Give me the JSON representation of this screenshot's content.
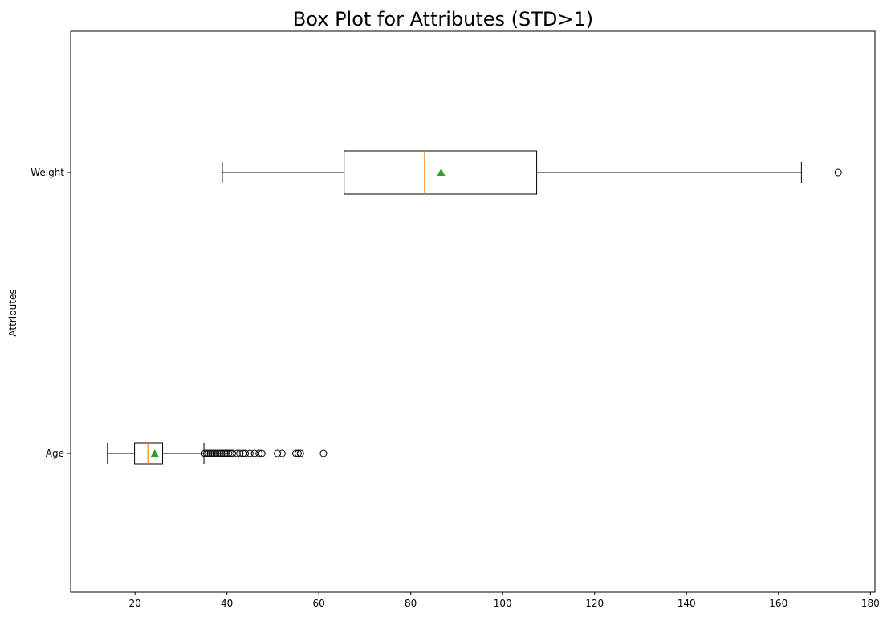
{
  "chart_data": {
    "type": "boxplot",
    "orientation": "horizontal",
    "title": "Box Plot for Attributes (STD>1)",
    "xlabel": "",
    "ylabel": "Attributes",
    "xlim": [
      6,
      181
    ],
    "x_ticks": [
      20,
      40,
      60,
      80,
      100,
      120,
      140,
      160,
      180
    ],
    "categories": [
      "Age",
      "Weight"
    ],
    "series": [
      {
        "name": "Age",
        "whisker_low": 14,
        "q1": 19.9,
        "median": 22.8,
        "q3": 26.0,
        "whisker_high": 35,
        "mean": 24.3,
        "outliers": [
          35.2,
          35.6,
          36.0,
          36.4,
          36.8,
          37.2,
          37.6,
          38.0,
          38.4,
          38.8,
          39.2,
          39.6,
          40.0,
          40.4,
          40.8,
          41.2,
          42.2,
          42.8,
          43.5,
          44.0,
          45.0,
          46.0,
          47.0,
          47.6,
          51.0,
          52.0,
          55.0,
          55.5,
          56.0,
          61.0
        ]
      },
      {
        "name": "Weight",
        "whisker_low": 39,
        "q1": 65.5,
        "median": 83.0,
        "q3": 107.4,
        "whisker_high": 165,
        "mean": 86.6,
        "outliers": [
          173
        ]
      }
    ],
    "colors": {
      "box": "#000000",
      "median": "#ff7f0e",
      "mean": "#2ca02c",
      "outlier": "#000000"
    }
  }
}
